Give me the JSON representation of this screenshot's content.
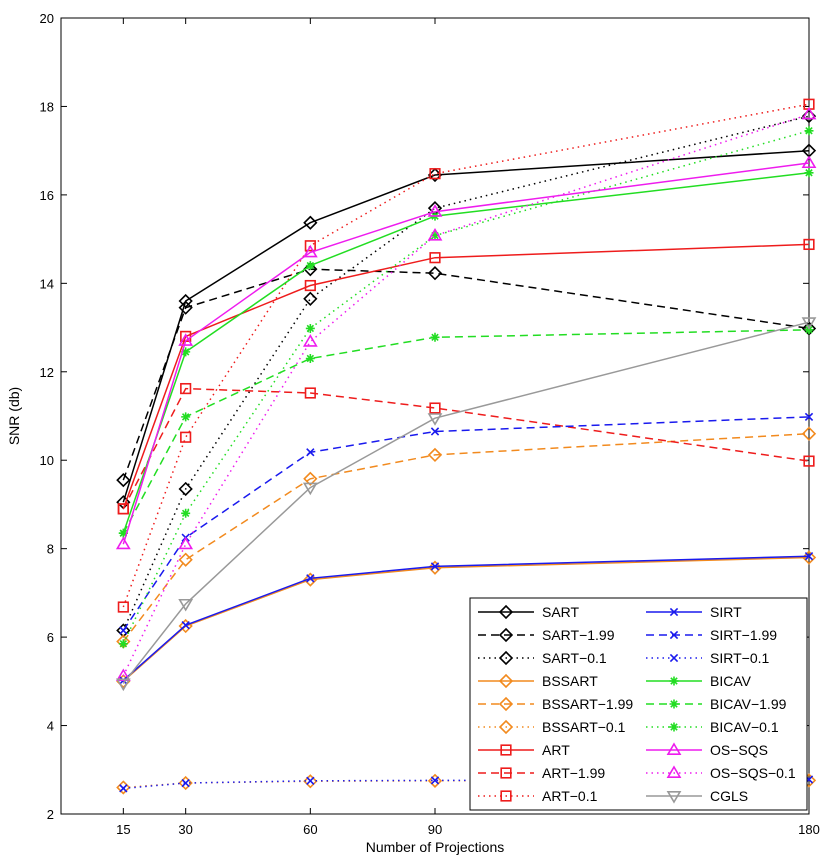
{
  "chart_data": {
    "type": "line",
    "title": "",
    "xlabel": "Number of Projections",
    "ylabel": "SNR (db)",
    "x": [
      15,
      30,
      60,
      90,
      180
    ],
    "xticks": [
      15,
      30,
      60,
      90,
      180
    ],
    "yticks": [
      2,
      4,
      6,
      8,
      10,
      12,
      14,
      16,
      18,
      20
    ],
    "xlim": [
      0,
      180
    ],
    "ylim": [
      2,
      20
    ],
    "legend_position": "bottom-right",
    "series": [
      {
        "name": "SART",
        "color": "#000000",
        "dash": "solid",
        "marker": "diamond",
        "values": [
          9.05,
          13.6,
          15.37,
          16.45,
          17.0
        ]
      },
      {
        "name": "SART−1.99",
        "color": "#000000",
        "dash": "dashed",
        "marker": "diamond",
        "values": [
          9.55,
          13.45,
          14.32,
          14.23,
          12.98
        ]
      },
      {
        "name": "SART−0.1",
        "color": "#000000",
        "dash": "dotted",
        "marker": "diamond",
        "values": [
          6.15,
          9.35,
          13.65,
          15.7,
          17.78
        ]
      },
      {
        "name": "BSSART",
        "color": "#f28a1e",
        "dash": "solid",
        "marker": "diamond",
        "values": [
          5.0,
          6.25,
          7.3,
          7.57,
          7.8
        ]
      },
      {
        "name": "BSSART−1.99",
        "color": "#f28a1e",
        "dash": "dashed",
        "marker": "diamond",
        "values": [
          5.9,
          7.75,
          9.58,
          10.12,
          10.6
        ]
      },
      {
        "name": "BSSART−0.1",
        "color": "#f28a1e",
        "dash": "dotted",
        "marker": "diamond",
        "values": [
          2.6,
          2.7,
          2.74,
          2.75,
          2.76
        ]
      },
      {
        "name": "ART",
        "color": "#ee1c1c",
        "dash": "solid",
        "marker": "square",
        "values": [
          8.9,
          12.8,
          13.95,
          14.58,
          14.88
        ]
      },
      {
        "name": "ART−1.99",
        "color": "#ee1c1c",
        "dash": "dashed",
        "marker": "square",
        "values": [
          8.9,
          11.62,
          11.52,
          11.18,
          9.98
        ]
      },
      {
        "name": "ART−0.1",
        "color": "#ee1c1c",
        "dash": "dotted",
        "marker": "square",
        "values": [
          6.68,
          10.52,
          14.85,
          16.48,
          18.05
        ]
      },
      {
        "name": "SIRT",
        "color": "#1a1aee",
        "dash": "solid",
        "marker": "x",
        "values": [
          5.02,
          6.27,
          7.33,
          7.6,
          7.83
        ]
      },
      {
        "name": "SIRT−1.99",
        "color": "#1a1aee",
        "dash": "dashed",
        "marker": "x",
        "values": [
          6.15,
          8.25,
          10.18,
          10.65,
          10.98
        ]
      },
      {
        "name": "SIRT−0.1",
        "color": "#1a1aee",
        "dash": "dotted",
        "marker": "x",
        "values": [
          2.58,
          2.7,
          2.75,
          2.76,
          2.78
        ]
      },
      {
        "name": "BICAV",
        "color": "#22dd22",
        "dash": "solid",
        "marker": "asterisk",
        "values": [
          8.35,
          12.45,
          14.4,
          15.52,
          16.5
        ]
      },
      {
        "name": "BICAV−1.99",
        "color": "#22dd22",
        "dash": "dashed",
        "marker": "asterisk",
        "values": [
          8.35,
          10.98,
          12.3,
          12.78,
          12.95
        ]
      },
      {
        "name": "BICAV−0.1",
        "color": "#22dd22",
        "dash": "dotted",
        "marker": "asterisk",
        "values": [
          5.85,
          8.8,
          12.98,
          15.08,
          17.45
        ]
      },
      {
        "name": "OS−SQS",
        "color": "#ee1cee",
        "dash": "solid",
        "marker": "triangle",
        "values": [
          8.1,
          12.7,
          14.7,
          15.62,
          16.72
        ]
      },
      {
        "name": "OS−SQS−0.1",
        "color": "#ee1cee",
        "dash": "dotted",
        "marker": "triangle",
        "values": [
          5.12,
          8.1,
          12.68,
          15.08,
          17.82
        ]
      },
      {
        "name": "CGLS",
        "color": "#999999",
        "dash": "solid",
        "marker": "down-triangle",
        "values": [
          4.95,
          6.75,
          9.38,
          10.95,
          13.12
        ]
      }
    ],
    "legend_columns": [
      [
        "SART",
        "SART−1.99",
        "SART−0.1",
        "BSSART",
        "BSSART−1.99",
        "BSSART−0.1",
        "ART",
        "ART−1.99",
        "ART−0.1"
      ],
      [
        "SIRT",
        "SIRT−1.99",
        "SIRT−0.1",
        "BICAV",
        "BICAV−1.99",
        "BICAV−0.1",
        "OS−SQS",
        "OS−SQS−0.1",
        "CGLS"
      ]
    ]
  }
}
